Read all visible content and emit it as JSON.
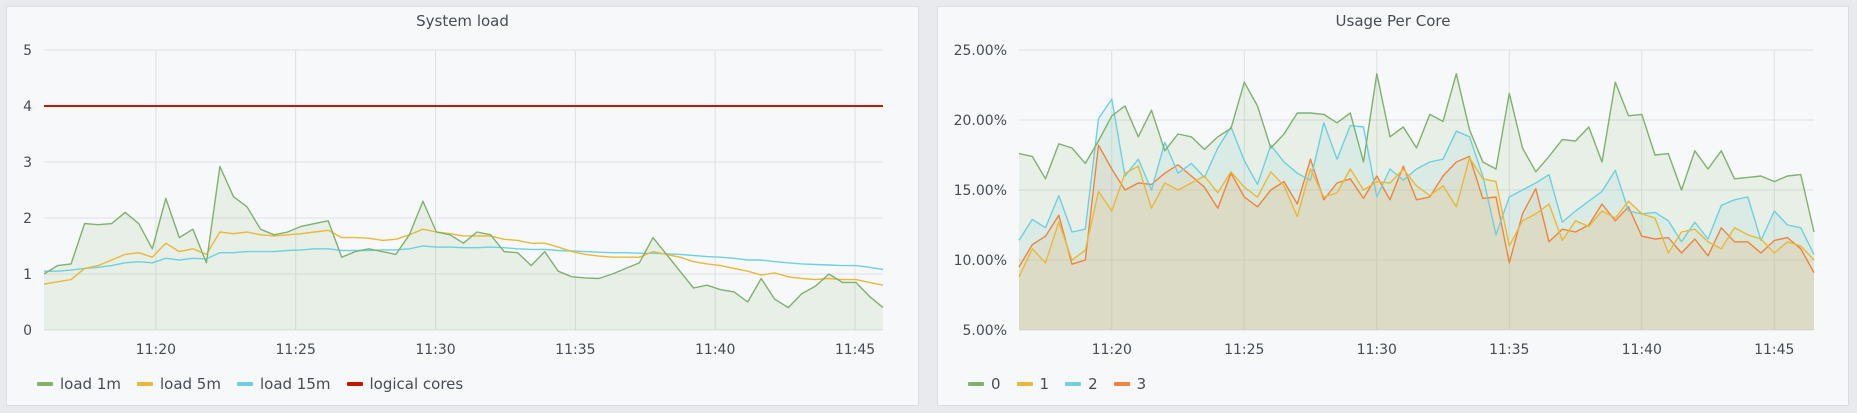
{
  "panels": [
    {
      "title": "System load",
      "legend": [
        "load 1m",
        "load 5m",
        "load 15m",
        "logical cores"
      ]
    },
    {
      "title": "Usage Per Core",
      "legend": [
        "0",
        "1",
        "2",
        "3"
      ]
    }
  ],
  "chart_data": [
    {
      "type": "line",
      "title": "System load",
      "x_tick_labels": [
        "11:20",
        "11:25",
        "11:30",
        "11:35",
        "11:40",
        "11:45"
      ],
      "x_ticks_minutes": [
        20,
        25,
        30,
        35,
        40,
        45
      ],
      "xlim_minutes": [
        16,
        46
      ],
      "y_tick_labels": [
        "0",
        "1",
        "2",
        "3",
        "4",
        "5"
      ],
      "ylim": [
        0,
        5
      ],
      "legend_placement": "bottom-left",
      "grid": true,
      "series": [
        {
          "name": "load 1m",
          "color": "#7eb26d",
          "fill": true,
          "values": [
            1.0,
            1.15,
            1.18,
            1.9,
            1.88,
            1.9,
            2.1,
            1.9,
            1.45,
            2.35,
            1.65,
            1.8,
            1.2,
            2.92,
            2.38,
            2.2,
            1.8,
            1.7,
            1.75,
            1.85,
            1.9,
            1.95,
            1.3,
            1.4,
            1.45,
            1.4,
            1.35,
            1.7,
            2.3,
            1.75,
            1.7,
            1.55,
            1.75,
            1.7,
            1.4,
            1.38,
            1.15,
            1.4,
            1.05,
            0.95,
            0.93,
            0.92,
            1.0,
            1.1,
            1.2,
            1.65,
            1.35,
            1.05,
            0.75,
            0.8,
            0.72,
            0.68,
            0.5,
            0.92,
            0.55,
            0.4,
            0.65,
            0.78,
            1.0,
            0.85,
            0.85,
            0.6,
            0.4
          ]
        },
        {
          "name": "load 5m",
          "color": "#eab839",
          "fill": false,
          "values": [
            0.82,
            0.86,
            0.9,
            1.1,
            1.15,
            1.25,
            1.35,
            1.38,
            1.3,
            1.55,
            1.4,
            1.45,
            1.35,
            1.75,
            1.72,
            1.75,
            1.7,
            1.68,
            1.7,
            1.72,
            1.75,
            1.78,
            1.65,
            1.65,
            1.64,
            1.6,
            1.62,
            1.7,
            1.8,
            1.75,
            1.72,
            1.68,
            1.68,
            1.68,
            1.62,
            1.6,
            1.55,
            1.55,
            1.48,
            1.4,
            1.35,
            1.32,
            1.3,
            1.3,
            1.3,
            1.4,
            1.35,
            1.3,
            1.22,
            1.18,
            1.15,
            1.1,
            1.05,
            0.98,
            1.02,
            0.95,
            0.92,
            0.9,
            0.92,
            0.9,
            0.9,
            0.85,
            0.8
          ]
        },
        {
          "name": "load 15m",
          "color": "#6ed0e0",
          "fill": false,
          "values": [
            1.05,
            1.05,
            1.07,
            1.1,
            1.12,
            1.15,
            1.2,
            1.22,
            1.2,
            1.28,
            1.25,
            1.28,
            1.27,
            1.38,
            1.38,
            1.4,
            1.4,
            1.4,
            1.42,
            1.43,
            1.45,
            1.45,
            1.42,
            1.42,
            1.42,
            1.43,
            1.43,
            1.45,
            1.5,
            1.48,
            1.48,
            1.47,
            1.47,
            1.48,
            1.47,
            1.45,
            1.44,
            1.44,
            1.42,
            1.41,
            1.4,
            1.39,
            1.38,
            1.38,
            1.37,
            1.37,
            1.36,
            1.35,
            1.33,
            1.31,
            1.3,
            1.28,
            1.25,
            1.25,
            1.22,
            1.2,
            1.18,
            1.17,
            1.16,
            1.15,
            1.15,
            1.12,
            1.08
          ]
        },
        {
          "name": "logical cores",
          "color": "#bf1b00",
          "fill": false,
          "values": [
            4,
            4,
            4,
            4,
            4,
            4,
            4,
            4,
            4,
            4,
            4,
            4,
            4,
            4,
            4,
            4,
            4,
            4,
            4,
            4,
            4,
            4,
            4,
            4,
            4,
            4,
            4,
            4,
            4,
            4,
            4,
            4,
            4,
            4,
            4,
            4,
            4,
            4,
            4,
            4,
            4,
            4,
            4,
            4,
            4,
            4,
            4,
            4,
            4,
            4,
            4,
            4,
            4,
            4,
            4,
            4,
            4,
            4,
            4,
            4,
            4,
            4,
            4
          ]
        }
      ]
    },
    {
      "type": "line",
      "title": "Usage Per Core",
      "x_tick_labels": [
        "11:20",
        "11:25",
        "11:30",
        "11:35",
        "11:40",
        "11:45"
      ],
      "x_ticks_minutes": [
        20,
        25,
        30,
        35,
        40,
        45
      ],
      "xlim_minutes": [
        16.5,
        46.5
      ],
      "y_tick_labels": [
        "5.00%",
        "10.00%",
        "15.00%",
        "20.00%",
        "25.00%"
      ],
      "ylim": [
        5,
        25
      ],
      "legend_placement": "bottom-left",
      "grid": true,
      "series": [
        {
          "name": "0",
          "color": "#7eb26d",
          "fill": true,
          "values": [
            17.6,
            17.4,
            15.8,
            18.3,
            18.0,
            16.9,
            18.5,
            20.3,
            21.0,
            18.8,
            20.7,
            17.8,
            19.0,
            18.8,
            17.9,
            18.8,
            19.4,
            22.7,
            21.0,
            18.0,
            19.0,
            20.5,
            20.5,
            20.4,
            19.8,
            20.5,
            17.0,
            23.3,
            18.8,
            19.5,
            18.0,
            20.4,
            19.9,
            23.3,
            19.3,
            17.0,
            16.5,
            21.9,
            18.0,
            16.3,
            17.4,
            18.6,
            18.5,
            19.5,
            17.0,
            22.7,
            20.3,
            20.4,
            17.5,
            17.6,
            15.0,
            17.8,
            16.5,
            17.8,
            15.8,
            15.9,
            16.0,
            15.6,
            16.0,
            16.1,
            12.0
          ]
        },
        {
          "name": "1",
          "color": "#eab839",
          "fill": false,
          "values": [
            8.8,
            10.8,
            9.8,
            12.7,
            10.0,
            10.7,
            14.9,
            13.5,
            16.2,
            16.7,
            13.7,
            15.5,
            15.0,
            15.5,
            16.0,
            14.8,
            16.3,
            15.2,
            14.5,
            16.3,
            15.3,
            13.1,
            16.5,
            14.5,
            14.8,
            16.5,
            15.0,
            15.6,
            15.5,
            16.5,
            15.3,
            14.6,
            15.3,
            13.8,
            17.3,
            15.8,
            15.6,
            11.0,
            12.8,
            13.3,
            14.0,
            11.4,
            12.8,
            12.4,
            13.5,
            13.0,
            14.2,
            13.3,
            13.0,
            10.5,
            12.0,
            12.2,
            11.3,
            10.8,
            12.3,
            11.8,
            11.5,
            10.5,
            11.3,
            11.0,
            10.0
          ]
        },
        {
          "name": "2",
          "color": "#6ed0e0",
          "fill": false,
          "values": [
            11.4,
            12.9,
            12.3,
            14.6,
            12.0,
            12.2,
            20.1,
            21.5,
            16.0,
            17.2,
            15.0,
            18.4,
            16.2,
            16.9,
            15.9,
            18.0,
            19.5,
            17.1,
            15.4,
            18.2,
            17.0,
            16.2,
            15.7,
            19.8,
            17.2,
            19.6,
            19.5,
            14.5,
            16.5,
            15.7,
            16.5,
            17.0,
            17.2,
            19.2,
            18.8,
            16.0,
            11.8,
            14.5,
            15.0,
            15.5,
            16.1,
            12.7,
            13.5,
            14.2,
            14.9,
            16.4,
            13.5,
            13.3,
            13.4,
            12.8,
            11.3,
            12.7,
            11.5,
            13.9,
            14.3,
            14.5,
            11.4,
            13.5,
            12.5,
            12.3,
            10.4
          ]
        },
        {
          "name": "3",
          "color": "#ef843c",
          "fill": false,
          "values": [
            9.5,
            11.1,
            11.7,
            13.2,
            9.7,
            10.0,
            18.2,
            16.5,
            15.0,
            15.5,
            15.4,
            16.2,
            16.8,
            16.0,
            15.2,
            13.7,
            16.2,
            14.5,
            13.8,
            15.0,
            15.6,
            14.0,
            17.2,
            14.3,
            15.5,
            15.8,
            14.4,
            16.0,
            14.3,
            16.7,
            14.3,
            14.5,
            16.0,
            17.0,
            17.4,
            14.4,
            14.5,
            9.8,
            13.3,
            15.1,
            11.3,
            12.2,
            12.0,
            12.5,
            14.0,
            12.8,
            13.8,
            11.7,
            11.5,
            11.6,
            10.5,
            11.5,
            10.3,
            12.3,
            11.3,
            11.3,
            10.5,
            11.4,
            11.6,
            10.8,
            9.1
          ]
        }
      ]
    }
  ]
}
